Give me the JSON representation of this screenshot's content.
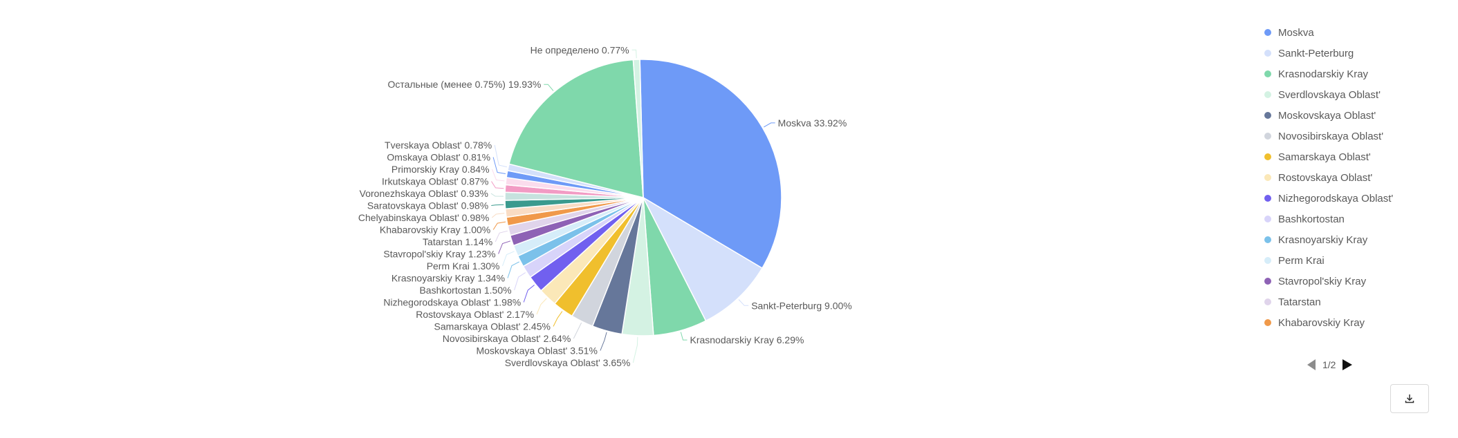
{
  "chart_data": {
    "type": "pie",
    "start_angle_deg": -1.4,
    "slices": [
      {
        "label": "Moskva 33.92%",
        "value": 33.92,
        "color": "#6e9af7"
      },
      {
        "label": "Sankt-Peterburg 9.00%",
        "value": 9.0,
        "color": "#d4e0fb"
      },
      {
        "label": "Krasnodarskiy Kray 6.29%",
        "value": 6.29,
        "color": "#7fd8ab"
      },
      {
        "label": "Sverdlovskaya Oblast' 3.65%",
        "value": 3.65,
        "color": "#d4f2e3"
      },
      {
        "label": "Moskovskaya Oblast' 3.51%",
        "value": 3.51,
        "color": "#66779a"
      },
      {
        "label": "Novosibirskaya Oblast' 2.64%",
        "value": 2.64,
        "color": "#d1d5dd"
      },
      {
        "label": "Samarskaya Oblast' 2.45%",
        "value": 2.45,
        "color": "#f0bf2d"
      },
      {
        "label": "Rostovskaya Oblast' 2.17%",
        "value": 2.17,
        "color": "#fbe8b8"
      },
      {
        "label": "Nizhegorodskaya Oblast' 1.98%",
        "value": 1.98,
        "color": "#7160ef"
      },
      {
        "label": "Bashkortostan 1.50%",
        "value": 1.5,
        "color": "#d8d4fa"
      },
      {
        "label": "Krasnoyarskiy Kray 1.34%",
        "value": 1.34,
        "color": "#7bc1ea"
      },
      {
        "label": "Perm Krai 1.30%",
        "value": 1.3,
        "color": "#d6edf9"
      },
      {
        "label": "Stavropol'skiy Kray 1.23%",
        "value": 1.23,
        "color": "#8e62b5"
      },
      {
        "label": "Tatarstan 1.14%",
        "value": 1.14,
        "color": "#e0d4eb"
      },
      {
        "label": "Khabarovskiy Kray 1.00%",
        "value": 1.0,
        "color": "#f0994a"
      },
      {
        "label": "Chelyabinskaya Oblast' 0.98%",
        "value": 0.98,
        "color": "#f9dcc4"
      },
      {
        "label": "Saratovskaya Oblast' 0.98%",
        "value": 0.98,
        "color": "#3a9a8e"
      },
      {
        "label": "Voronezhskaya Oblast' 0.93%",
        "value": 0.93,
        "color": "#c6e2de"
      },
      {
        "label": "Irkutskaya Oblast' 0.87%",
        "value": 0.87,
        "color": "#f29bc4"
      },
      {
        "label": "Primorskiy Kray 0.84%",
        "value": 0.84,
        "color": "#fbdced"
      },
      {
        "label": "Omskaya Oblast' 0.81%",
        "value": 0.81,
        "color": "#6e9af7"
      },
      {
        "label": "Tverskaya Oblast' 0.78%",
        "value": 0.78,
        "color": "#d4e0fb"
      },
      {
        "label": "Остальные (менее 0.75%) 19.93%",
        "value": 19.93,
        "color": "#7fd8ab"
      },
      {
        "label": "Не определено 0.77%",
        "value": 0.77,
        "color": "#d4f2e3"
      }
    ]
  },
  "legend": {
    "items": [
      {
        "name": "Moskva",
        "color": "#6e9af7"
      },
      {
        "name": "Sankt-Peterburg",
        "color": "#d4e0fb"
      },
      {
        "name": "Krasnodarskiy Kray",
        "color": "#7fd8ab"
      },
      {
        "name": "Sverdlovskaya Oblast'",
        "color": "#d4f2e3"
      },
      {
        "name": "Moskovskaya Oblast'",
        "color": "#66779a"
      },
      {
        "name": "Novosibirskaya Oblast'",
        "color": "#d1d5dd"
      },
      {
        "name": "Samarskaya Oblast'",
        "color": "#f0bf2d"
      },
      {
        "name": "Rostovskaya Oblast'",
        "color": "#fbe8b8"
      },
      {
        "name": "Nizhegorodskaya Oblast'",
        "color": "#7160ef"
      },
      {
        "name": "Bashkortostan",
        "color": "#d8d4fa"
      },
      {
        "name": "Krasnoyarskiy Kray",
        "color": "#7bc1ea"
      },
      {
        "name": "Perm Krai",
        "color": "#d6edf9"
      },
      {
        "name": "Stavropol'skiy Kray",
        "color": "#8e62b5"
      },
      {
        "name": "Tatarstan",
        "color": "#e0d4eb"
      },
      {
        "name": "Khabarovskiy Kray",
        "color": "#f0994a"
      }
    ],
    "page_indicator": "1/2"
  },
  "toolbar": {
    "download_icon": "download-icon"
  }
}
